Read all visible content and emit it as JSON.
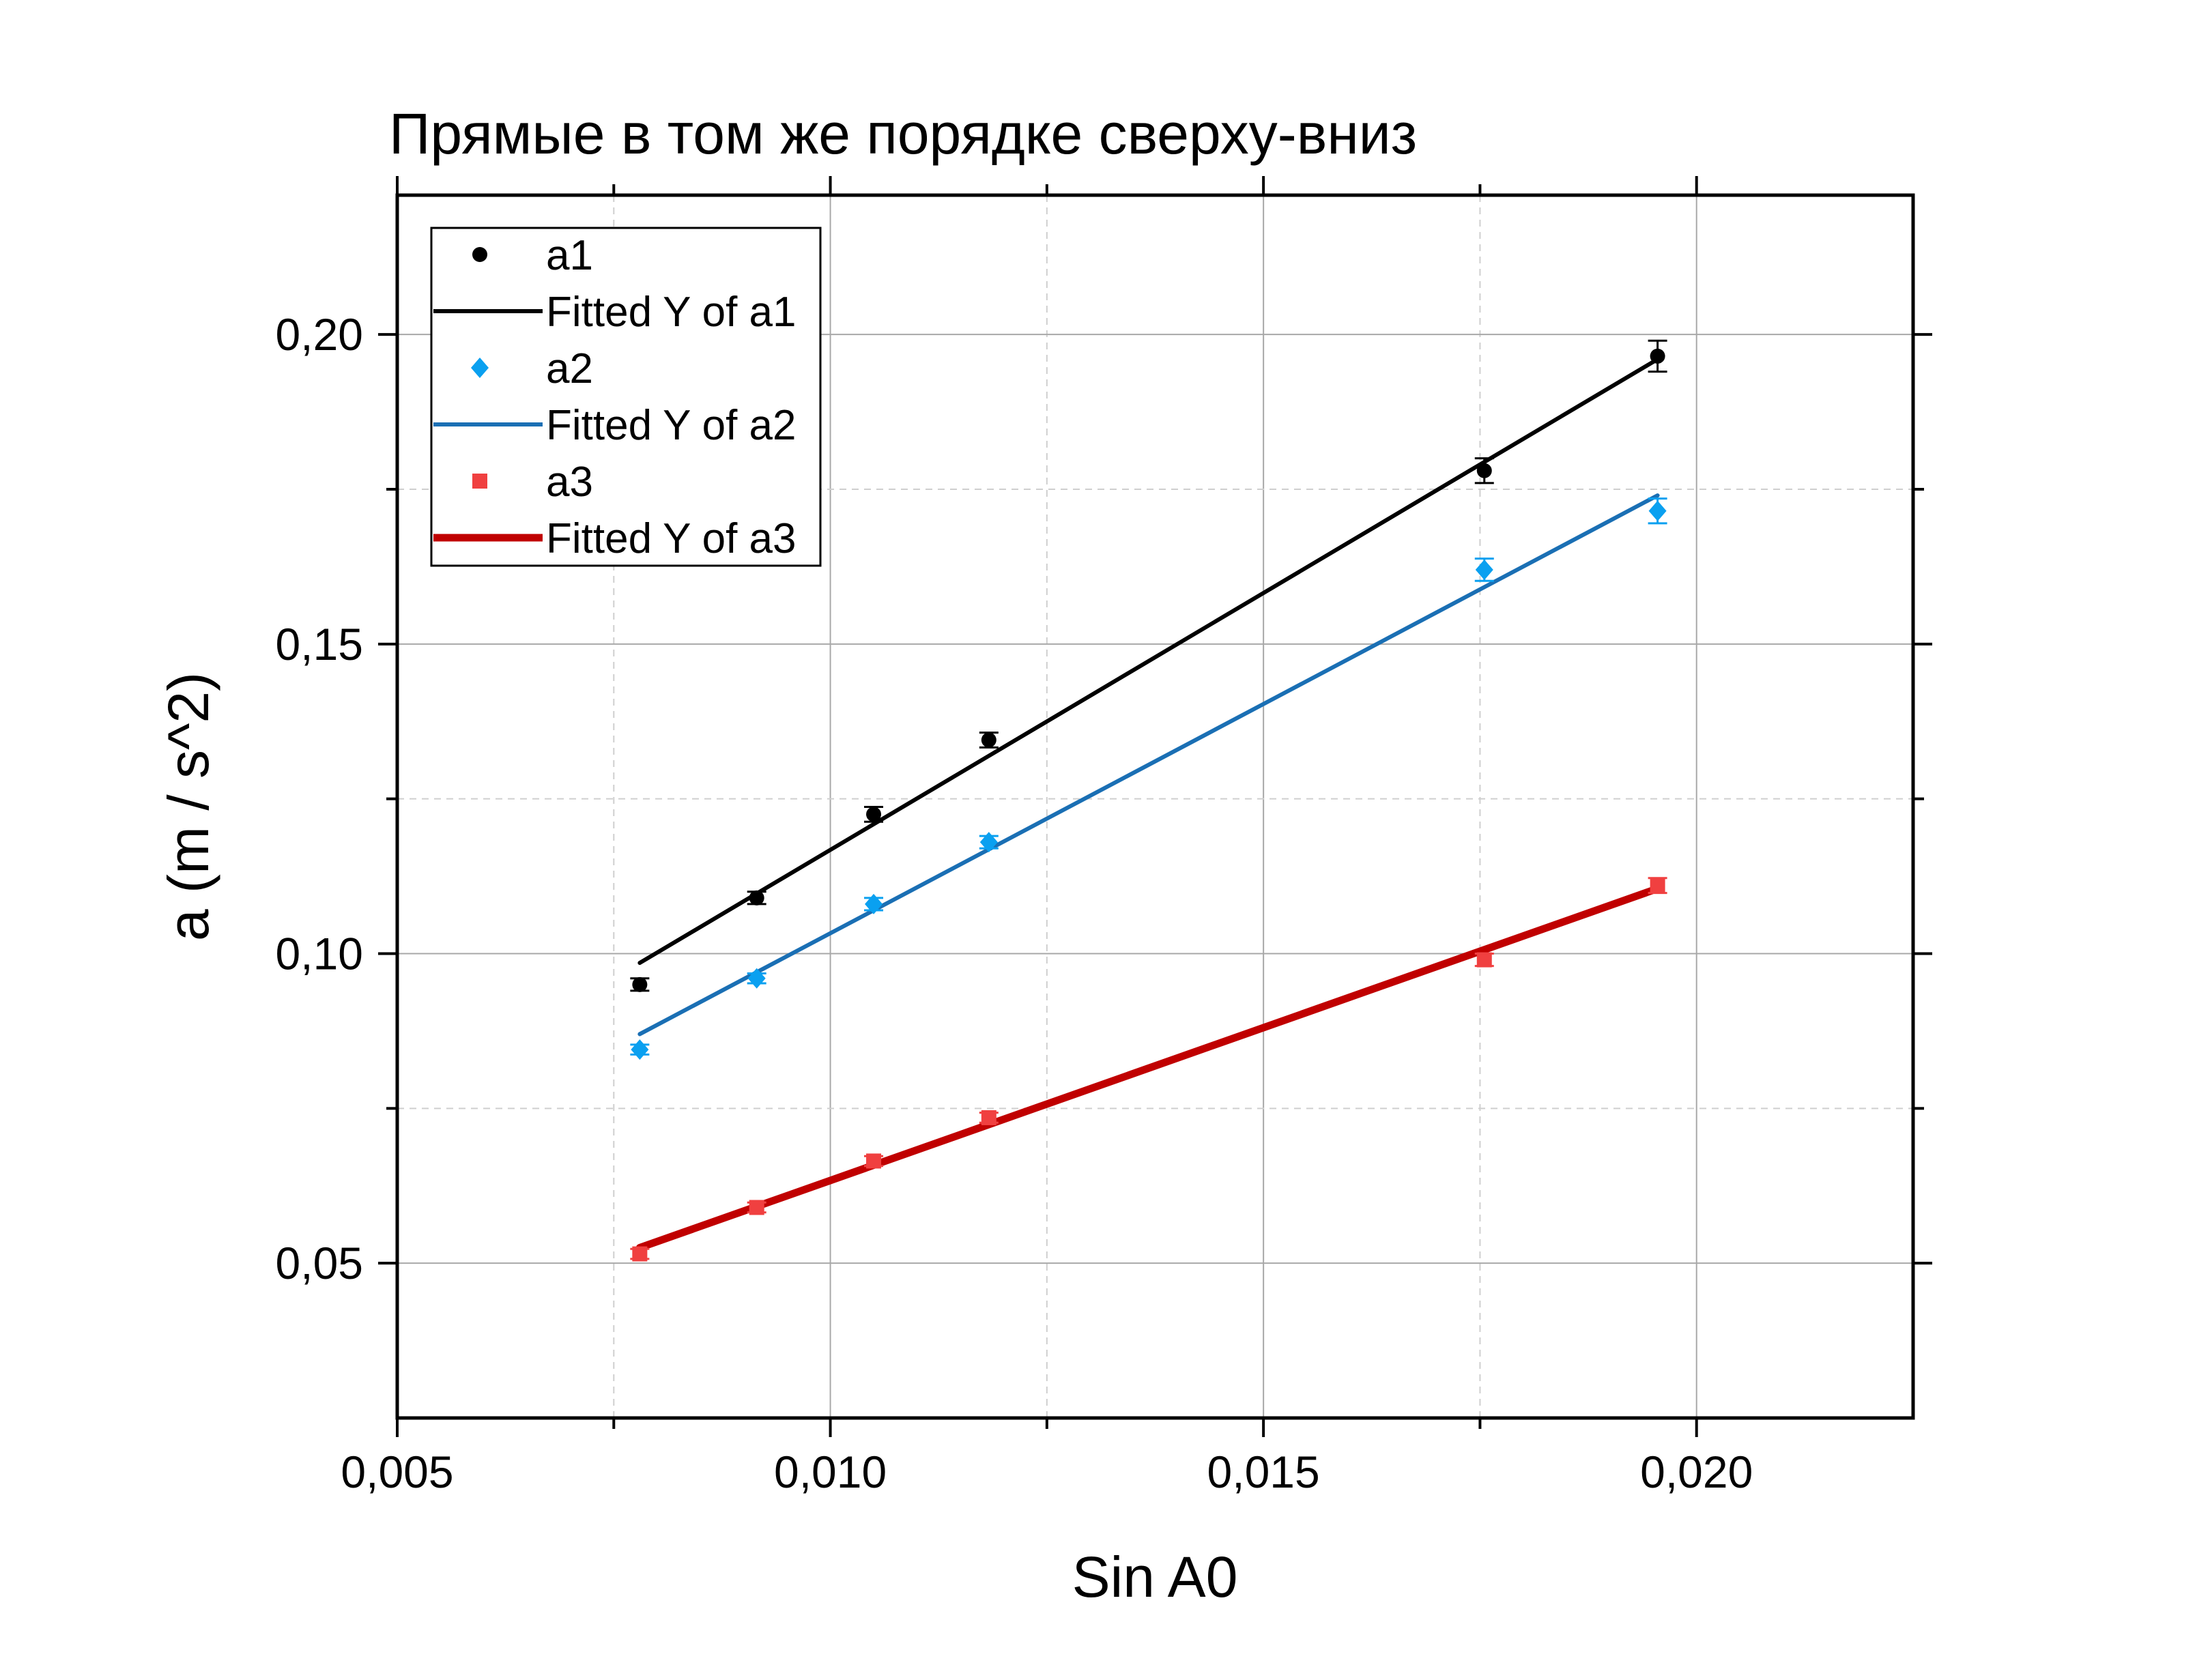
{
  "chart_data": {
    "type": "scatter",
    "title": "Прямые в том же порядке сверху-вниз",
    "xlabel": "Sin A0",
    "ylabel": "a (m / s^2)",
    "xlim": [
      0.005,
      0.0225
    ],
    "ylim": [
      0.025,
      0.2225
    ],
    "xticks": [
      {
        "value": 0.005,
        "label": "0,005"
      },
      {
        "value": 0.01,
        "label": "0,010"
      },
      {
        "value": 0.015,
        "label": "0,015"
      },
      {
        "value": 0.02,
        "label": "0,020"
      }
    ],
    "yticks": [
      {
        "value": 0.05,
        "label": "0,05"
      },
      {
        "value": 0.1,
        "label": "0,10"
      },
      {
        "value": 0.15,
        "label": "0,15"
      },
      {
        "value": 0.2,
        "label": "0,20"
      }
    ],
    "grid": true,
    "legend_position": "top-left",
    "series": [
      {
        "name": "a1",
        "marker": "circle",
        "color": "#000000",
        "x": [
          0.0078,
          0.00915,
          0.0105,
          0.01183,
          0.01755,
          0.01955
        ],
        "y": [
          0.095,
          0.109,
          0.1225,
          0.1345,
          0.178,
          0.1965
        ],
        "err": [
          0.001,
          0.001,
          0.0012,
          0.0012,
          0.002,
          0.0025
        ]
      },
      {
        "name": "a2",
        "marker": "diamond",
        "color": "#0aa0f0",
        "x": [
          0.0078,
          0.00915,
          0.0105,
          0.01183,
          0.01755,
          0.01955
        ],
        "y": [
          0.0845,
          0.096,
          0.108,
          0.118,
          0.162,
          0.1715
        ],
        "err": [
          0.0008,
          0.0008,
          0.001,
          0.001,
          0.0018,
          0.002
        ]
      },
      {
        "name": "a3",
        "marker": "square",
        "color": "#f04040",
        "x": [
          0.0078,
          0.00915,
          0.0105,
          0.01183,
          0.01755,
          0.01955
        ],
        "y": [
          0.0515,
          0.059,
          0.0665,
          0.0735,
          0.099,
          0.111
        ],
        "err": [
          0.0008,
          0.0008,
          0.0008,
          0.0008,
          0.001,
          0.0012
        ]
      }
    ],
    "fits": [
      {
        "name": "Fitted Y of a1",
        "color": "#000000",
        "x": [
          0.0078,
          0.01955
        ],
        "y": [
          0.0985,
          0.196
        ]
      },
      {
        "name": "Fitted Y of a2",
        "color": "#1a6fb4",
        "x": [
          0.0078,
          0.01955
        ],
        "y": [
          0.087,
          0.174
        ]
      },
      {
        "name": "Fitted Y of a3",
        "color": "#c00000",
        "x": [
          0.0078,
          0.01955
        ],
        "y": [
          0.0525,
          0.1105
        ]
      }
    ]
  }
}
